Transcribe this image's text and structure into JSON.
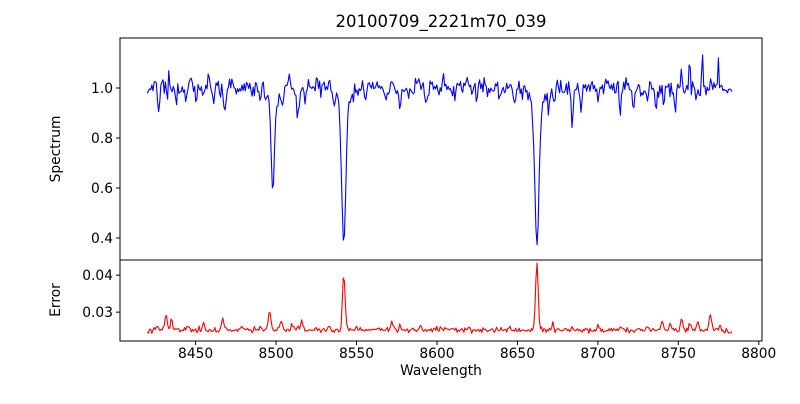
{
  "figure": {
    "background_color": "#ffffff",
    "spine_color": "#000000",
    "text_color": "#000000"
  },
  "chart_data": {
    "type": "line",
    "title": "20100709_2221m70_039",
    "xlabel": "Wavelength",
    "xlim": [
      8403,
      8802
    ],
    "x_ticks": [
      8450,
      8500,
      8550,
      8600,
      8650,
      8700,
      8750,
      8800
    ],
    "wavelength_start": 8420,
    "wavelength_end": 8784,
    "sample_step": 0.7,
    "noise_seed": 20100709,
    "legend": "none",
    "grid": false,
    "panels": [
      {
        "name": "spectrum",
        "ylabel": "Spectrum",
        "line_color": "#0000ff",
        "ylim": [
          0.312,
          1.2
        ],
        "y_ticks": [
          0.4,
          0.6,
          0.8,
          1.0
        ],
        "tick_decimals": 1,
        "continuum_level": 1.0,
        "noise_sigma": 0.018,
        "absorption_lines": {
          "format": [
            "center_wavelength",
            "depth",
            "sigma"
          ],
          "values": [
            [
              8427,
              0.06,
              0.7
            ],
            [
              8432.8,
              0.07,
              0.5
            ],
            [
              8438,
              0.08,
              0.5
            ],
            [
              8444,
              0.05,
              0.5
            ],
            [
              8450.5,
              0.06,
              0.5
            ],
            [
              8461,
              0.05,
              0.5
            ],
            [
              8468,
              0.07,
              0.7
            ],
            [
              8475,
              0.04,
              0.5
            ],
            [
              8490,
              0.05,
              0.5
            ],
            [
              8498.0,
              0.36,
              1.0
            ],
            [
              8498.0,
              0.06,
              3.5
            ],
            [
              8504,
              0.08,
              0.7
            ],
            [
              8513.5,
              0.13,
              0.9
            ],
            [
              8518,
              0.06,
              0.6
            ],
            [
              8542.1,
              0.5,
              1.2
            ],
            [
              8542.1,
              0.12,
              3.5
            ],
            [
              8556,
              0.04,
              0.5
            ],
            [
              8568,
              0.05,
              0.5
            ],
            [
              8577,
              0.06,
              0.6
            ],
            [
              8593,
              0.07,
              0.6
            ],
            [
              8611,
              0.05,
              0.5
            ],
            [
              8625,
              0.04,
              0.5
            ],
            [
              8639,
              0.05,
              0.5
            ],
            [
              8648,
              0.06,
              0.5
            ],
            [
              8662.1,
              0.51,
              1.2
            ],
            [
              8662.1,
              0.12,
              3.5
            ],
            [
              8669.5,
              0.09,
              0.5
            ],
            [
              8673,
              0.06,
              0.5
            ],
            [
              8684,
              0.16,
              0.6
            ],
            [
              8689.5,
              0.09,
              0.5
            ],
            [
              8700,
              0.05,
              0.5
            ],
            [
              8714,
              0.09,
              0.6
            ],
            [
              8722,
              0.06,
              0.5
            ],
            [
              8731,
              0.08,
              0.5
            ],
            [
              8736,
              0.09,
              0.5
            ],
            [
              8741,
              0.08,
              0.5
            ],
            [
              8748,
              0.1,
              0.6
            ],
            [
              8761,
              0.06,
              0.4
            ]
          ]
        },
        "emission_spikes": {
          "format": [
            "center_wavelength",
            "height",
            "sigma"
          ],
          "values": [
            [
              8425,
              0.05,
              0.4
            ],
            [
              8433,
              0.11,
              0.4
            ],
            [
              8447,
              0.06,
              0.4
            ],
            [
              8458,
              0.05,
              0.4
            ],
            [
              8508,
              0.05,
              0.4
            ],
            [
              8604,
              0.05,
              0.4
            ],
            [
              8619,
              0.04,
              0.4
            ],
            [
              8752,
              0.06,
              0.4
            ],
            [
              8757,
              0.1,
              0.4
            ],
            [
              8765,
              0.15,
              0.45
            ],
            [
              8770,
              0.07,
              0.4
            ],
            [
              8775,
              0.12,
              0.4
            ]
          ]
        }
      },
      {
        "name": "error",
        "ylabel": "Error",
        "line_color": "#ff0000",
        "ylim": [
          0.0222,
          0.0441
        ],
        "y_ticks": [
          0.03,
          0.04
        ],
        "tick_decimals": 2,
        "baseline_level": 0.0252,
        "noise_sigma": 0.00035,
        "peaks": {
          "format": [
            "center_wavelength",
            "height",
            "sigma"
          ],
          "values": [
            [
              8418,
              -0.0008,
              2.0
            ],
            [
              8426,
              0.001,
              0.6
            ],
            [
              8431.5,
              0.0042,
              0.7
            ],
            [
              8435,
              0.0028,
              0.6
            ],
            [
              8445,
              0.0012,
              0.6
            ],
            [
              8455,
              0.0016,
              0.6
            ],
            [
              8467,
              0.0032,
              0.8
            ],
            [
              8478,
              0.001,
              0.5
            ],
            [
              8496,
              0.005,
              0.9
            ],
            [
              8503,
              0.0022,
              0.7
            ],
            [
              8510,
              0.0012,
              0.6
            ],
            [
              8516,
              0.0024,
              0.7
            ],
            [
              8542.1,
              0.0153,
              0.8
            ],
            [
              8550,
              0.0012,
              0.6
            ],
            [
              8572,
              0.0026,
              0.6
            ],
            [
              8577,
              0.0016,
              0.5
            ],
            [
              8590,
              0.0008,
              0.5
            ],
            [
              8605,
              0.0012,
              0.5
            ],
            [
              8620,
              0.0008,
              0.5
            ],
            [
              8645,
              0.001,
              0.5
            ],
            [
              8662.1,
              0.0182,
              0.8
            ],
            [
              8672,
              0.002,
              0.6
            ],
            [
              8684,
              0.0014,
              0.5
            ],
            [
              8700,
              0.0008,
              0.5
            ],
            [
              8714,
              0.0012,
              0.5
            ],
            [
              8731,
              0.0012,
              0.5
            ],
            [
              8740,
              0.0022,
              0.7
            ],
            [
              8745,
              0.0018,
              0.6
            ],
            [
              8752,
              0.003,
              0.7
            ],
            [
              8757,
              0.002,
              0.5
            ],
            [
              8762,
              0.003,
              0.6
            ],
            [
              8770,
              0.0042,
              0.8
            ],
            [
              8776,
              0.002,
              0.5
            ],
            [
              8786,
              -0.0015,
              3.5
            ]
          ]
        }
      }
    ]
  }
}
